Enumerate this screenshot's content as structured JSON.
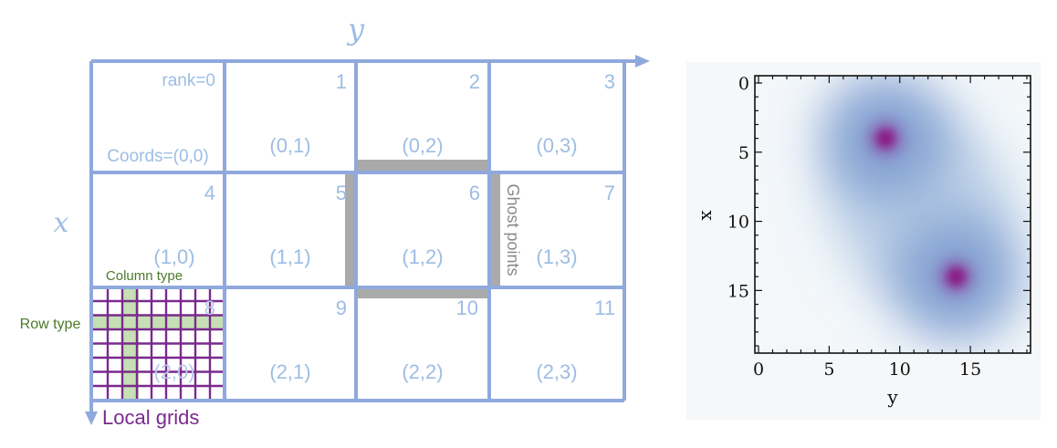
{
  "axes_labels": {
    "y": "y",
    "x": "x"
  },
  "ranks": [
    {
      "rank": "rank=0",
      "coords": "Coords=(0,0)"
    },
    {
      "rank": "1",
      "coords": "(0,1)"
    },
    {
      "rank": "2",
      "coords": "(0,2)"
    },
    {
      "rank": "3",
      "coords": "(0,3)"
    },
    {
      "rank": "4",
      "coords": "(1,0)"
    },
    {
      "rank": "5",
      "coords": "(1,1)"
    },
    {
      "rank": "6",
      "coords": "(1,2)"
    },
    {
      "rank": "7",
      "coords": "(1,3)"
    },
    {
      "rank": "8",
      "coords": "(2,0)"
    },
    {
      "rank": "9",
      "coords": "(2,1)"
    },
    {
      "rank": "10",
      "coords": "(2,2)"
    },
    {
      "rank": "11",
      "coords": "(2,3)"
    }
  ],
  "labels": {
    "ghost_points": "Ghost points",
    "column_type": "Column type",
    "row_type": "Row type",
    "local_grids": "Local grids"
  },
  "colors": {
    "grid_blue": "#8fa9dc",
    "text_blue": "#9dbde3",
    "ghost_gray": "#aaaaaa",
    "local_purple": "#7a2a8e",
    "type_green": "#c6dfb4",
    "label_green": "#4a7a28"
  },
  "chart_data": {
    "type": "heatmap",
    "xlabel": "y",
    "ylabel": "x",
    "xlim": [
      0,
      19
    ],
    "ylim": [
      19,
      0
    ],
    "xticks": [
      "0",
      "5",
      "10",
      "15"
    ],
    "yticks": [
      "0",
      "5",
      "10",
      "15"
    ],
    "colormap": "BuPu",
    "peaks": [
      {
        "x": 4,
        "y": 9,
        "value": 1.0
      },
      {
        "x": 14,
        "y": 14,
        "value": 1.0
      }
    ]
  }
}
